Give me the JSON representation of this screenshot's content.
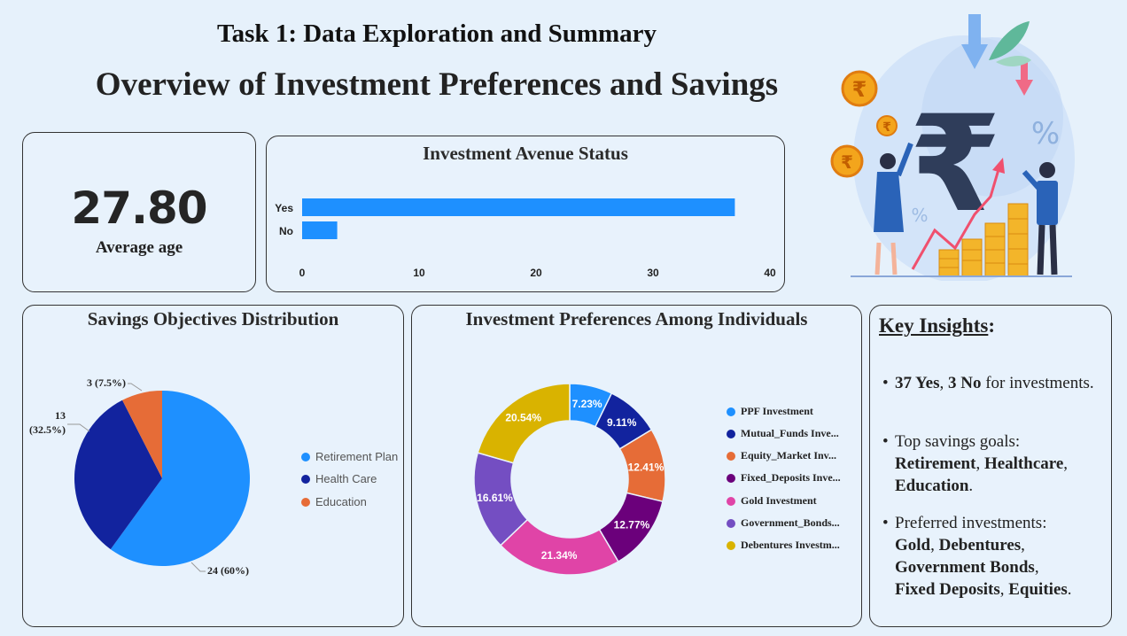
{
  "header": {
    "title": "Task 1: Data Exploration and Summary",
    "subtitle": "Overview of Investment Preferences and Savings"
  },
  "kpi": {
    "value": "27.80",
    "label": "Average age"
  },
  "charts": {
    "bar_title": "Investment Avenue Status",
    "pie_title": "Savings Objectives Distribution",
    "donut_title": "Investment Preferences Among Individuals"
  },
  "chart_data": [
    {
      "type": "bar",
      "orientation": "horizontal",
      "title": "Investment Avenue Status",
      "categories": [
        "Yes",
        "No"
      ],
      "values": [
        37,
        3
      ],
      "xlim": [
        0,
        40
      ],
      "xticks": [
        0,
        10,
        20,
        30,
        40
      ],
      "color": "#1e90ff"
    },
    {
      "type": "pie",
      "title": "Savings Objectives Distribution",
      "labels": [
        "Retirement Plan",
        "Health Care",
        "Education"
      ],
      "values": [
        24,
        13,
        3
      ],
      "data_labels": [
        "24 (60%)",
        "13 (32.5%)",
        "3 (7.5%)"
      ],
      "colors": [
        "#1e90ff",
        "#12239e",
        "#e66c37"
      ],
      "legend": "right"
    },
    {
      "type": "donut",
      "title": "Investment Preferences Among Individuals",
      "labels": [
        "PPF Investment",
        "Mutual_Funds Inve...",
        "Equity_Market Inv...",
        "Fixed_Deposits Inve...",
        "Gold Investment",
        "Government_Bonds...",
        "Debentures Investm..."
      ],
      "values": [
        7.23,
        9.11,
        12.41,
        12.77,
        21.34,
        16.61,
        20.54
      ],
      "data_labels": [
        "7.23%",
        "9.11%",
        "12.41%",
        "12.77%",
        "21.34%",
        "16.61%",
        "20.54%"
      ],
      "colors": [
        "#1e90ff",
        "#12239e",
        "#e66c37",
        "#6b007b",
        "#e044a7",
        "#744ec2",
        "#d9b300"
      ],
      "legend": "right"
    }
  ],
  "insights": {
    "title": "Key Insights",
    "title_suffix": ":",
    "bullet": "•",
    "b1_strong1": "37 Yes",
    "b1_sep": ", ",
    "b1_strong2": "3 No",
    "b1_rest": " for investments.",
    "b2_text": "Top savings goals:",
    "b2_strong1": "Retirement",
    "b2_sep1": ", ",
    "b2_strong2": "Healthcare",
    "b2_sep2": ", ",
    "b2_strong3": "Education",
    "b2_end": ".",
    "b3_text": "Preferred investments:",
    "b3_strong1": "Gold",
    "b3_sep1": ", ",
    "b3_strong2": "Debentures",
    "b3_sep2": ",",
    "b3_strong3": "Government Bonds",
    "b3_sep3": ",",
    "b3_strong4": "Fixed Deposits",
    "b3_sep4": ", ",
    "b3_strong5": "Equities",
    "b3_end": "."
  },
  "illustration": {
    "rupee_symbol": "₹",
    "percent_symbol": "%"
  }
}
